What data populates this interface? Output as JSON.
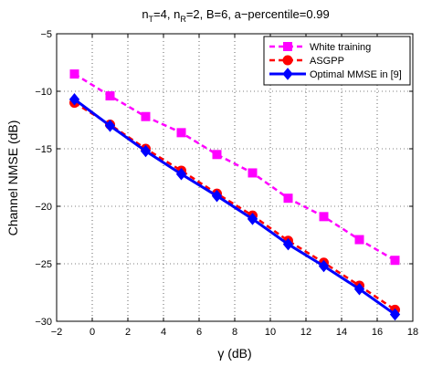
{
  "chart_data": {
    "type": "line",
    "title": {
      "pre": "n",
      "sub1": "T",
      "mid1": "=4, n",
      "sub2": "R",
      "post": "=2, B=6, a−percentile=0.99"
    },
    "xlabel": {
      "symbol": "γ",
      "unit": " (dB)"
    },
    "ylabel": "Channel NMSE (dB)",
    "xlim": [
      -2,
      18
    ],
    "ylim": [
      -30,
      -5
    ],
    "xticks": [
      -2,
      0,
      2,
      4,
      6,
      8,
      10,
      12,
      14,
      16,
      18
    ],
    "xtick_labels": [
      "−2",
      "0",
      "2",
      "4",
      "6",
      "8",
      "10",
      "12",
      "14",
      "16",
      "18"
    ],
    "yticks": [
      -30,
      -25,
      -20,
      -15,
      -10,
      -5
    ],
    "ytick_labels": [
      "−30",
      "−25",
      "−20",
      "−15",
      "−10",
      "−5"
    ],
    "grid": true,
    "legend_position": "top-right",
    "x": [
      -1,
      1,
      3,
      5,
      7,
      9,
      11,
      13,
      15,
      17
    ],
    "series": [
      {
        "name": "White training",
        "color": "#ff00ff",
        "line_style": "dashed",
        "marker": "square",
        "values": [
          -8.5,
          -10.4,
          -12.2,
          -13.6,
          -15.5,
          -17.1,
          -19.3,
          -20.9,
          -22.9,
          -24.7
        ]
      },
      {
        "name": "ASGPP",
        "color": "#ff0000",
        "line_style": "dashed",
        "marker": "circle",
        "values": [
          -11.0,
          -12.9,
          -15.0,
          -16.9,
          -18.9,
          -20.8,
          -23.0,
          -24.9,
          -26.9,
          -29.0
        ]
      },
      {
        "name": "Optimal MMSE in [9]",
        "color": "#0000ff",
        "line_style": "solid",
        "marker": "diamond",
        "values": [
          -10.7,
          -13.0,
          -15.2,
          -17.2,
          -19.1,
          -21.1,
          -23.3,
          -25.2,
          -27.2,
          -29.4
        ]
      }
    ]
  }
}
